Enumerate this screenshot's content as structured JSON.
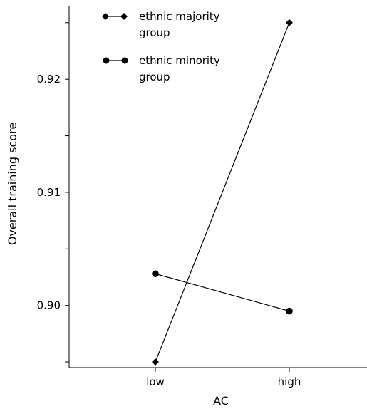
{
  "chart_data": {
    "type": "line",
    "categories": [
      "low",
      "high"
    ],
    "xlabel": "AC",
    "ylabel": "Overall training score",
    "ylim": [
      0.8945,
      0.9265
    ],
    "yticks": [
      0.895,
      0.9,
      0.905,
      0.91,
      0.915,
      0.92,
      0.925
    ],
    "ytick_labels": [
      "",
      "0.90",
      "",
      "0.91",
      "",
      "0.92",
      ""
    ],
    "legend_position": "top-left",
    "series": [
      {
        "name": "ethnic majority group",
        "marker": "diamond",
        "values": [
          0.895,
          0.925
        ]
      },
      {
        "name": "ethnic minority group",
        "marker": "circle",
        "values": [
          0.9028,
          0.8995
        ]
      }
    ]
  }
}
